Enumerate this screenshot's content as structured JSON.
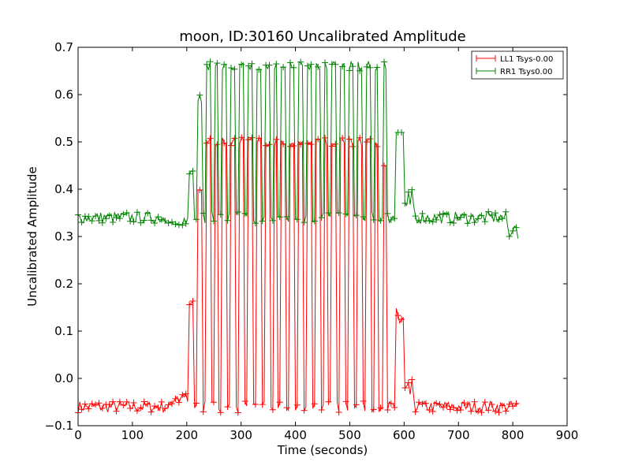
{
  "chart_data": {
    "type": "line",
    "title": "moon, ID:30160 Uncalibrated Amplitude",
    "xlabel": "Time (seconds)",
    "ylabel": "Uncalibrated Amplitude",
    "xlim": [
      0,
      900
    ],
    "ylim": [
      -0.1,
      0.7
    ],
    "x_ticks": [
      "0",
      "100",
      "200",
      "300",
      "400",
      "500",
      "600",
      "700",
      "800",
      "900"
    ],
    "y_ticks": [
      "−0.1",
      "0.0",
      "0.1",
      "0.2",
      "0.3",
      "0.4",
      "0.5",
      "0.6",
      "0.7"
    ],
    "grid": false,
    "legend_position": "top-right",
    "marker": "+",
    "series": [
      {
        "name": "LL1 Tsys-0.00",
        "color": "#ff0000",
        "baseline": -0.06,
        "scan_peak": 0.51,
        "x": [
          0,
          30,
          60,
          90,
          120,
          150,
          180,
          200,
          210,
          222,
          232,
          245,
          258,
          272,
          286,
          300,
          315,
          330,
          345,
          360,
          376,
          392,
          408,
          424,
          440,
          456,
          472,
          488,
          504,
          520,
          536,
          552,
          566,
          578,
          592,
          610,
          640,
          680,
          720,
          760,
          800,
          812
        ],
        "y": [
          -0.05,
          -0.055,
          -0.06,
          -0.065,
          -0.06,
          -0.055,
          -0.05,
          0.17,
          -0.05,
          0.4,
          -0.05,
          0.5,
          -0.06,
          0.51,
          -0.06,
          0.51,
          -0.06,
          0.515,
          -0.06,
          0.51,
          -0.06,
          0.505,
          -0.06,
          0.5,
          -0.06,
          0.5,
          -0.06,
          0.495,
          -0.06,
          0.49,
          -0.06,
          0.49,
          -0.06,
          0.45,
          0.15,
          -0.05,
          -0.06,
          -0.06,
          -0.065,
          -0.06,
          -0.055,
          -0.065
        ]
      },
      {
        "name": "RR1 Tsys0.00",
        "color": "#008000",
        "baseline": 0.34,
        "scan_peak": 0.67,
        "x": [
          0,
          30,
          60,
          90,
          120,
          150,
          180,
          200,
          210,
          222,
          232,
          245,
          258,
          272,
          286,
          300,
          315,
          330,
          345,
          360,
          376,
          392,
          408,
          424,
          440,
          456,
          472,
          488,
          504,
          520,
          536,
          552,
          566,
          578,
          592,
          610,
          640,
          680,
          720,
          760,
          800,
          812
        ],
        "y": [
          0.33,
          0.34,
          0.345,
          0.34,
          0.335,
          0.33,
          0.33,
          0.32,
          0.42,
          0.6,
          0.33,
          0.67,
          0.32,
          0.67,
          0.33,
          0.67,
          0.33,
          0.675,
          0.33,
          0.67,
          0.33,
          0.67,
          0.33,
          0.675,
          0.34,
          0.68,
          0.34,
          0.675,
          0.34,
          0.68,
          0.35,
          0.68,
          0.33,
          0.53,
          0.33,
          0.34,
          0.34,
          0.345,
          0.345,
          0.35,
          0.35,
          0.35
        ]
      }
    ]
  }
}
